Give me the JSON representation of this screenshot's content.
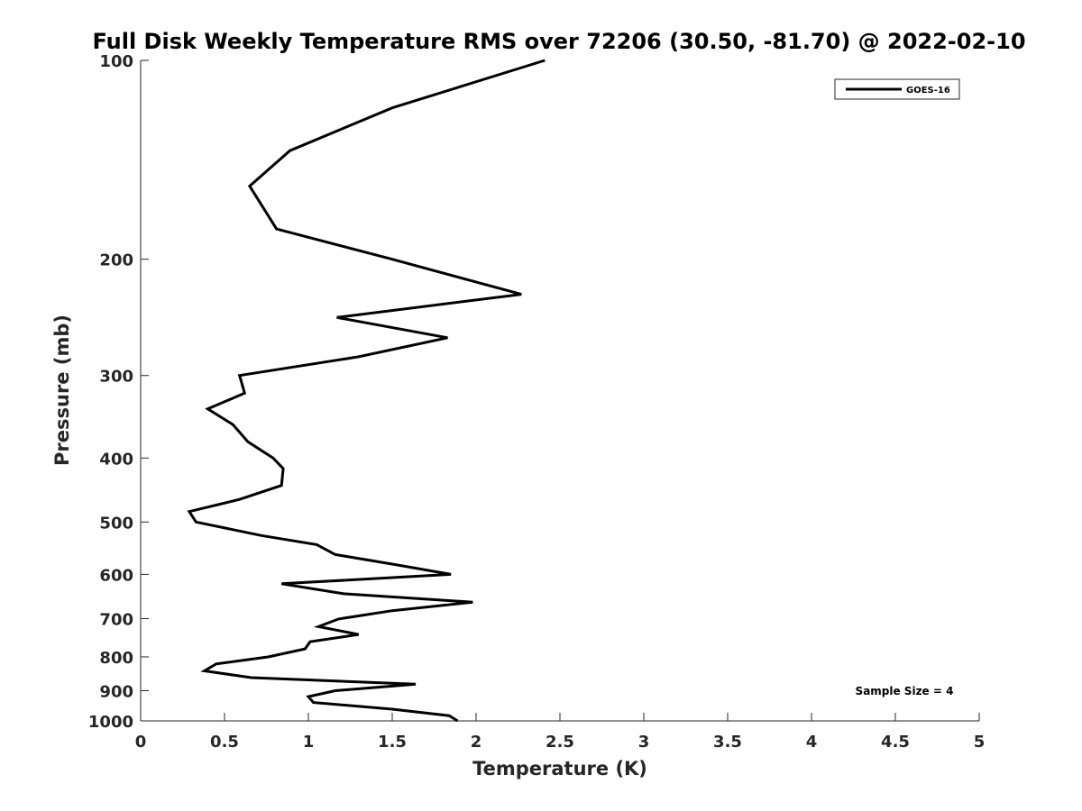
{
  "chart_data": {
    "type": "line",
    "title": "Full Disk Weekly Temperature RMS over 72206 (30.50, -81.70) @ 2022-02-10",
    "xlabel": "Temperature (K)",
    "ylabel": "Pressure (mb)",
    "xlim": [
      0,
      5
    ],
    "ylim": [
      100,
      1000
    ],
    "y_scale": "log",
    "y_reversed": true,
    "grid": false,
    "legend_position": "top-right",
    "x_ticks": [
      0,
      0.5,
      1,
      1.5,
      2,
      2.5,
      3,
      3.5,
      4,
      4.5,
      5
    ],
    "y_ticks": [
      100,
      200,
      300,
      400,
      500,
      600,
      700,
      800,
      900,
      1000
    ],
    "series": [
      {
        "name": "GOES-16",
        "color": "#000000",
        "points": [
          [
            2.41,
            100
          ],
          [
            1.5,
            118
          ],
          [
            0.89,
            137
          ],
          [
            0.65,
            155
          ],
          [
            0.81,
            180
          ],
          [
            1.5,
            200
          ],
          [
            2.27,
            226
          ],
          [
            1.17,
            245
          ],
          [
            1.83,
            263
          ],
          [
            1.3,
            281
          ],
          [
            0.59,
            300
          ],
          [
            0.62,
            319
          ],
          [
            0.4,
            337
          ],
          [
            0.55,
            356
          ],
          [
            0.64,
            378
          ],
          [
            0.79,
            400
          ],
          [
            0.85,
            415
          ],
          [
            0.84,
            440
          ],
          [
            0.59,
            462
          ],
          [
            0.29,
            482
          ],
          [
            0.33,
            500
          ],
          [
            0.72,
            524
          ],
          [
            1.05,
            541
          ],
          [
            1.16,
            560
          ],
          [
            1.52,
            580
          ],
          [
            1.85,
            600
          ],
          [
            0.84,
            620
          ],
          [
            1.21,
            642
          ],
          [
            1.98,
            661
          ],
          [
            1.5,
            681
          ],
          [
            1.18,
            701
          ],
          [
            1.06,
            720
          ],
          [
            1.3,
            740
          ],
          [
            1.01,
            759
          ],
          [
            0.98,
            778
          ],
          [
            0.76,
            800
          ],
          [
            0.45,
            820
          ],
          [
            0.38,
            840
          ],
          [
            0.66,
            860
          ],
          [
            1.64,
            880
          ],
          [
            1.16,
            900
          ],
          [
            1.0,
            919
          ],
          [
            1.03,
            938
          ],
          [
            1.5,
            960
          ],
          [
            1.84,
            982
          ],
          [
            1.89,
            1000
          ]
        ]
      }
    ],
    "annotations": [
      "Sample Size = 4"
    ]
  }
}
